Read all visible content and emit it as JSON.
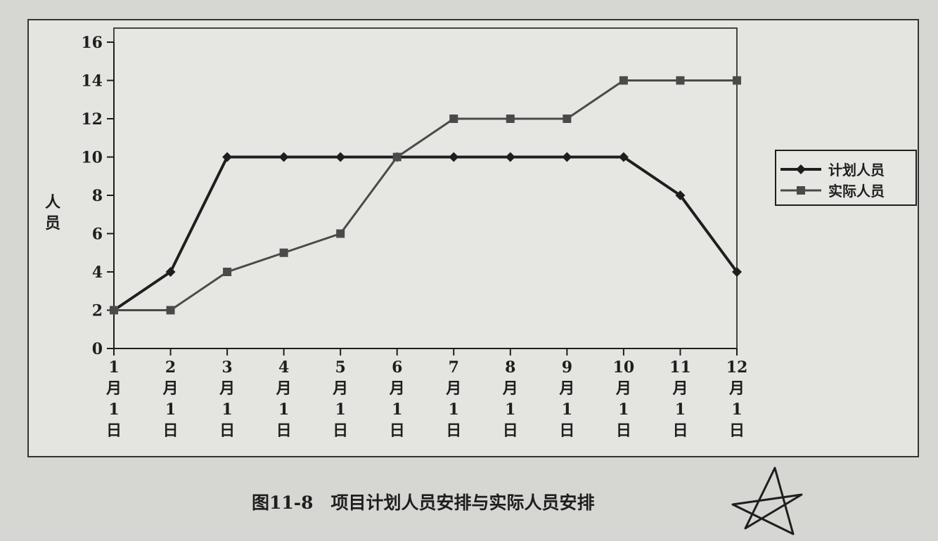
{
  "chart_data": {
    "type": "line",
    "title": "",
    "ylabel": "人员",
    "xlabel": "",
    "x": [
      "1月1日",
      "2月1日",
      "3月1日",
      "4月1日",
      "5月1日",
      "6月1日",
      "7月1日",
      "8月1日",
      "9月1日",
      "10月1日",
      "11月1日",
      "12月1日"
    ],
    "x_tick_labels": [
      [
        "1",
        "月",
        "1",
        "日"
      ],
      [
        "2",
        "月",
        "1",
        "日"
      ],
      [
        "3",
        "月",
        "1",
        "日"
      ],
      [
        "4",
        "月",
        "1",
        "日"
      ],
      [
        "5",
        "月",
        "1",
        "日"
      ],
      [
        "6",
        "月",
        "1",
        "日"
      ],
      [
        "7",
        "月",
        "1",
        "日"
      ],
      [
        "8",
        "月",
        "1",
        "日"
      ],
      [
        "9",
        "月",
        "1",
        "日"
      ],
      [
        "10",
        "月",
        "1",
        "日"
      ],
      [
        "11",
        "月",
        "1",
        "日"
      ],
      [
        "12",
        "月",
        "1",
        "日"
      ]
    ],
    "y_ticks": [
      "0",
      "2",
      "4",
      "6",
      "8",
      "10",
      "12",
      "14",
      "16"
    ],
    "ylim": [
      0,
      16
    ],
    "grid": false,
    "legend_position": "right",
    "series": [
      {
        "name": "计划人员",
        "marker": "diamond",
        "color": "#1e1e1e",
        "values": [
          2,
          4,
          10,
          10,
          10,
          10,
          10,
          10,
          10,
          10,
          8,
          4
        ]
      },
      {
        "name": "实际人员",
        "marker": "square",
        "color": "#4a4a4a",
        "values": [
          2,
          2,
          4,
          5,
          6,
          10,
          12,
          12,
          12,
          14,
          14,
          14
        ]
      }
    ]
  },
  "caption": "图11-8　项目计划人员安排与实际人员安排"
}
